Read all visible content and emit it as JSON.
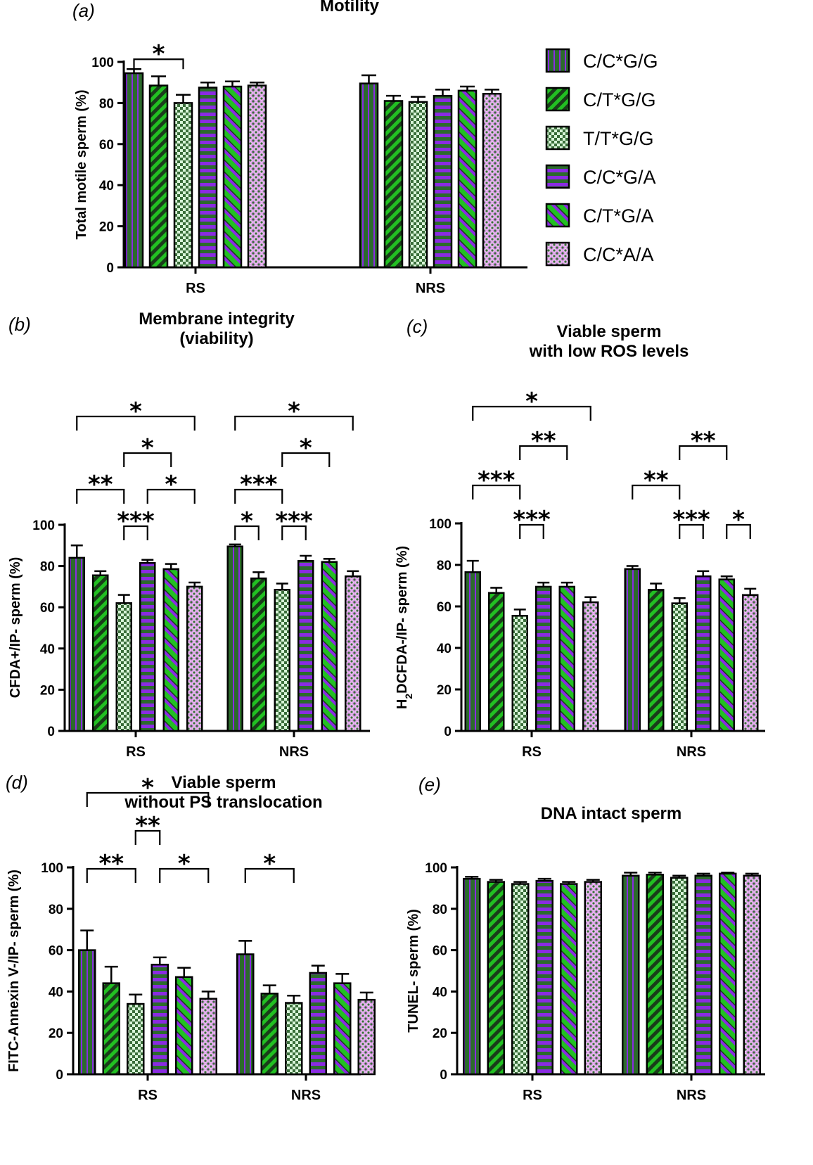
{
  "legend": [
    {
      "label": "C/C*G/G",
      "pattern": "vstripe"
    },
    {
      "label": "C/T*G/G",
      "pattern": "diag"
    },
    {
      "label": "T/T*G/G",
      "pattern": "checker"
    },
    {
      "label": "C/C*G/A",
      "pattern": "hstripe"
    },
    {
      "label": "C/T*G/A",
      "pattern": "diag2"
    },
    {
      "label": "C/C*A/A",
      "pattern": "cross"
    }
  ],
  "colors": {
    "green": "#22c022",
    "darkgreen": "#2c6b2c",
    "purple": "#8a2be2",
    "pink": "#d896e6",
    "lightgreen": "#c8f0c8"
  },
  "chart_data": [
    {
      "panel": "(a)",
      "type": "bar",
      "title_lines": [
        "Motility"
      ],
      "ylabel": "Total motile sperm (%)",
      "ylim": [
        0,
        100
      ],
      "yticks": [
        "0",
        "20",
        "40",
        "60",
        "80",
        "100"
      ],
      "categories": [
        "RS",
        "NRS"
      ],
      "series": [
        {
          "name": "C/C*G/G",
          "values": [
            94.5,
            89.5
          ],
          "errors": [
            2,
            4
          ]
        },
        {
          "name": "C/T*G/G",
          "values": [
            88.5,
            81
          ],
          "errors": [
            4.5,
            2.5
          ]
        },
        {
          "name": "T/T*G/G",
          "values": [
            80,
            80.5
          ],
          "errors": [
            4,
            2.5
          ]
        },
        {
          "name": "C/C*G/A",
          "values": [
            87.5,
            83.5
          ],
          "errors": [
            2.5,
            3
          ]
        },
        {
          "name": "C/T*G/A",
          "values": [
            88,
            86
          ],
          "errors": [
            2.5,
            2
          ]
        },
        {
          "name": "C/C*A/A",
          "values": [
            88.5,
            84.5
          ],
          "errors": [
            1.5,
            2
          ]
        }
      ],
      "annotations": [
        {
          "group": 0,
          "from": 0,
          "to": 2,
          "label": "*"
        }
      ]
    },
    {
      "panel": "(b)",
      "type": "bar",
      "title_lines": [
        "Membrane integrity",
        "(viability)"
      ],
      "ylabel": "CFDA+/IP-  sperm (%)",
      "ylim": [
        0,
        100
      ],
      "yticks": [
        "0",
        "20",
        "40",
        "60",
        "80",
        "100"
      ],
      "categories": [
        "RS",
        "NRS"
      ],
      "series": [
        {
          "name": "C/C*G/G",
          "values": [
            84,
            89.5
          ],
          "errors": [
            6,
            1
          ]
        },
        {
          "name": "C/T*G/G",
          "values": [
            75.5,
            74
          ],
          "errors": [
            2,
            3
          ]
        },
        {
          "name": "T/T*G/G",
          "values": [
            62,
            68.5
          ],
          "errors": [
            4,
            3
          ]
        },
        {
          "name": "C/C*G/A",
          "values": [
            81.5,
            82.5
          ],
          "errors": [
            1.5,
            2.5
          ]
        },
        {
          "name": "C/T*G/A",
          "values": [
            78.5,
            82
          ],
          "errors": [
            2.5,
            1.5
          ]
        },
        {
          "name": "C/C*A/A",
          "values": [
            70,
            75
          ],
          "errors": [
            2,
            2.5
          ]
        }
      ],
      "annotations": [
        {
          "group": 0,
          "from": 2,
          "to": 3,
          "label": "***"
        },
        {
          "group": 0,
          "from": 0,
          "to": 2,
          "label": "**"
        },
        {
          "group": 0,
          "from": 3,
          "to": 5,
          "label": "*"
        },
        {
          "group": 0,
          "from": 2,
          "to": 4,
          "label": "*"
        },
        {
          "group": 0,
          "from": 0,
          "to": 5,
          "label": "*"
        },
        {
          "group": 1,
          "from": 0,
          "to": 1,
          "label": "*"
        },
        {
          "group": 1,
          "from": 2,
          "to": 3,
          "label": "***"
        },
        {
          "group": 1,
          "from": 0,
          "to": 2,
          "label": "***"
        },
        {
          "group": 1,
          "from": 2,
          "to": 4,
          "label": "*"
        },
        {
          "group": 1,
          "from": 0,
          "to": 5,
          "label": "*"
        }
      ]
    },
    {
      "panel": "(c)",
      "type": "bar",
      "title_lines": [
        "Viable sperm",
        "with low ROS levels"
      ],
      "ylabel": "H2DCFDA-/IP-  sperm (%)",
      "ylim": [
        0,
        100
      ],
      "yticks": [
        "0",
        "20",
        "40",
        "60",
        "80",
        "100"
      ],
      "categories": [
        "RS",
        "NRS"
      ],
      "series": [
        {
          "name": "C/C*G/G",
          "values": [
            76.5,
            78
          ],
          "errors": [
            5.5,
            1.5
          ]
        },
        {
          "name": "C/T*G/G",
          "values": [
            66.5,
            68
          ],
          "errors": [
            2.5,
            3
          ]
        },
        {
          "name": "T/T*G/G",
          "values": [
            55.5,
            61.5
          ],
          "errors": [
            3,
            2.5
          ]
        },
        {
          "name": "C/C*G/A",
          "values": [
            69.5,
            74.5
          ],
          "errors": [
            2,
            2.5
          ]
        },
        {
          "name": "C/T*G/A",
          "values": [
            69.5,
            73
          ],
          "errors": [
            2,
            1.5
          ]
        },
        {
          "name": "C/C*A/A",
          "values": [
            62,
            65.5
          ],
          "errors": [
            2.5,
            3
          ]
        }
      ],
      "annotations": [
        {
          "group": 0,
          "from": 2,
          "to": 3,
          "label": "***"
        },
        {
          "group": 0,
          "from": 0,
          "to": 2,
          "label": "***"
        },
        {
          "group": 0,
          "from": 2,
          "to": 4,
          "label": "**"
        },
        {
          "group": 0,
          "from": 0,
          "to": 5,
          "label": "*"
        },
        {
          "group": 1,
          "from": 4,
          "to": 5,
          "label": "*"
        },
        {
          "group": 1,
          "from": 2,
          "to": 3,
          "label": "***"
        },
        {
          "group": 1,
          "from": 0,
          "to": 2,
          "label": "**"
        },
        {
          "group": 1,
          "from": 2,
          "to": 4,
          "label": "**"
        }
      ]
    },
    {
      "panel": "(d)",
      "type": "bar",
      "title_lines": [
        "Viable sperm",
        "without PS translocation"
      ],
      "ylabel": "FITC-Annexin V-/IP- sperm (%)",
      "ylim": [
        0,
        100
      ],
      "yticks": [
        "0",
        "20",
        "40",
        "60",
        "80",
        "100"
      ],
      "categories": [
        "RS",
        "NRS"
      ],
      "series": [
        {
          "name": "C/C*G/G",
          "values": [
            60,
            58
          ],
          "errors": [
            9.5,
            6.5
          ]
        },
        {
          "name": "C/T*G/G",
          "values": [
            44,
            39
          ],
          "errors": [
            8,
            4
          ]
        },
        {
          "name": "T/T*G/G",
          "values": [
            34,
            34.5
          ],
          "errors": [
            4.5,
            3.5
          ]
        },
        {
          "name": "C/C*G/A",
          "values": [
            53,
            49
          ],
          "errors": [
            3.5,
            3.5
          ]
        },
        {
          "name": "C/T*G/A",
          "values": [
            47,
            44
          ],
          "errors": [
            4.5,
            4.5
          ]
        },
        {
          "name": "C/C*A/A",
          "values": [
            36.5,
            36
          ],
          "errors": [
            3.5,
            3.5
          ]
        }
      ],
      "annotations": [
        {
          "group": 0,
          "from": 0,
          "to": 2,
          "label": "**"
        },
        {
          "group": 0,
          "from": 2,
          "to": 3,
          "label": "**"
        },
        {
          "group": 0,
          "from": 3,
          "to": 5,
          "label": "*"
        },
        {
          "group": 0,
          "from": 0,
          "to": 5,
          "label": "*"
        },
        {
          "group": 1,
          "from": 0,
          "to": 2,
          "label": "*"
        }
      ]
    },
    {
      "panel": "(e)",
      "type": "bar",
      "title_lines": [
        "DNA intact sperm"
      ],
      "ylabel": "TUNEL-   sperm (%)",
      "ylim": [
        0,
        100
      ],
      "yticks": [
        "0",
        "20",
        "40",
        "60",
        "80",
        "100"
      ],
      "categories": [
        "RS",
        "NRS"
      ],
      "series": [
        {
          "name": "C/C*G/G",
          "values": [
            94.5,
            96
          ],
          "errors": [
            1,
            1.5
          ]
        },
        {
          "name": "C/T*G/G",
          "values": [
            93,
            96.5
          ],
          "errors": [
            1,
            1
          ]
        },
        {
          "name": "T/T*G/G",
          "values": [
            92,
            95
          ],
          "errors": [
            1,
            1
          ]
        },
        {
          "name": "C/C*G/A",
          "values": [
            93.5,
            96
          ],
          "errors": [
            1,
            1
          ]
        },
        {
          "name": "C/T*G/A",
          "values": [
            92,
            97
          ],
          "errors": [
            1,
            0.5
          ]
        },
        {
          "name": "C/C*A/A",
          "values": [
            93,
            96
          ],
          "errors": [
            1,
            1
          ]
        }
      ],
      "annotations": []
    }
  ]
}
